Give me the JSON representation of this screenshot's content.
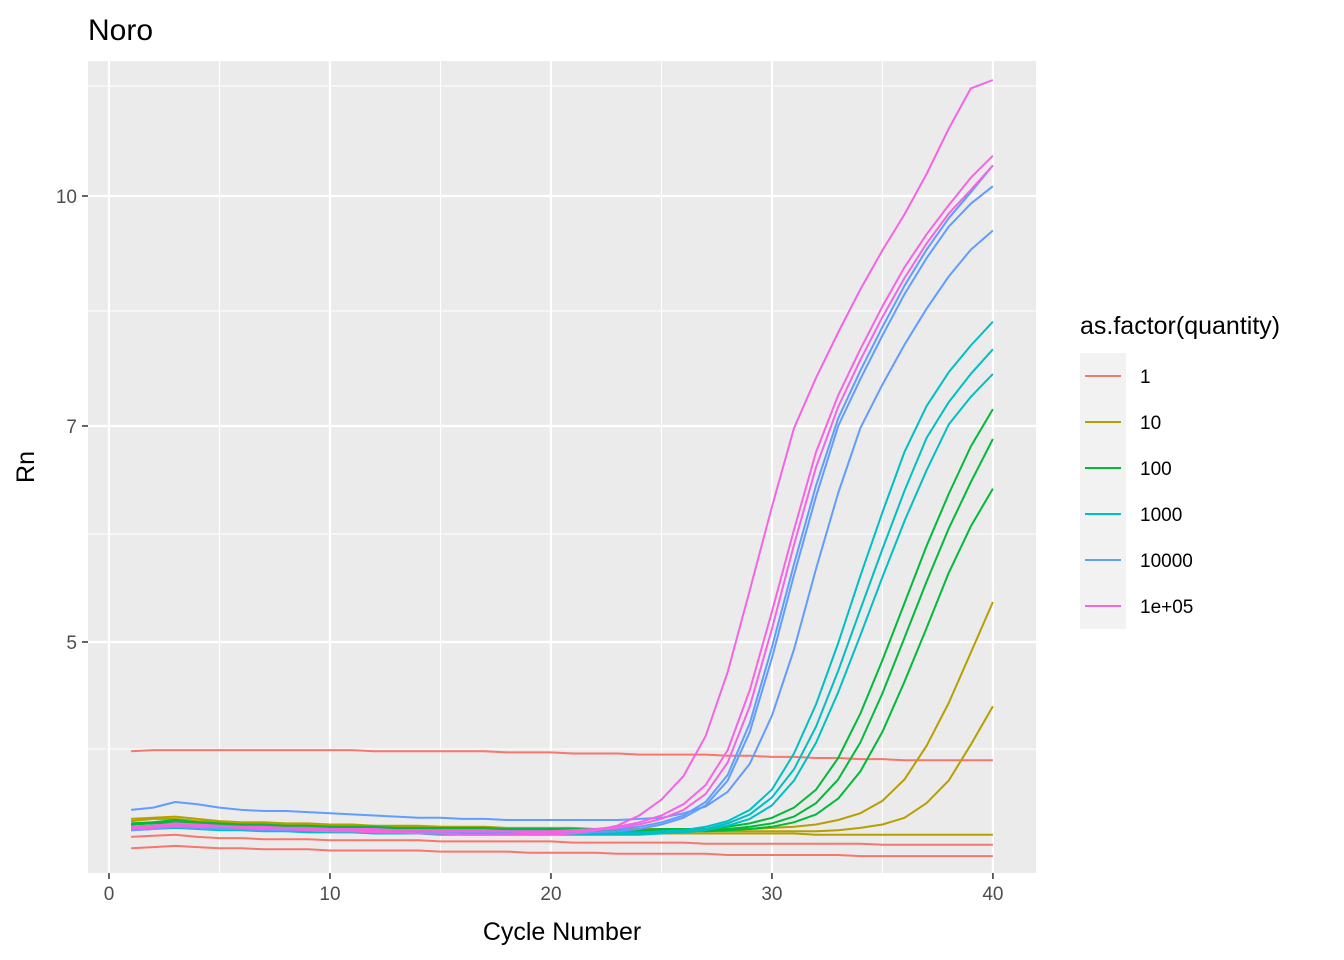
{
  "chart_data": {
    "type": "line",
    "title": "Noro",
    "xlabel": "Cycle Number",
    "ylabel": "Rn",
    "xlim": [
      -0.95,
      41.95
    ],
    "ylim": [
      2.9,
      11.4
    ],
    "x_ticks": [
      0,
      10,
      20,
      30,
      40
    ],
    "x_minor": [
      5,
      15,
      25,
      35
    ],
    "y_ticks": [
      5,
      7,
      10
    ],
    "y_tick_labels": [
      "5",
      "7",
      "10"
    ],
    "y_minor": [
      4.0,
      6.0,
      8.5,
      10.9
    ],
    "grid": true,
    "legend": {
      "title": "as.factor(quantity)",
      "position": "right",
      "entries": [
        {
          "label": "1",
          "color": "#F8766D"
        },
        {
          "label": "10",
          "color": "#B79F00"
        },
        {
          "label": "100",
          "color": "#00BA38"
        },
        {
          "label": "1000",
          "color": "#00BFC4"
        },
        {
          "label": "10000",
          "color": "#619CFF"
        },
        {
          "label": "1e+05",
          "color": "#F564E3"
        }
      ]
    },
    "x": [
      1,
      2,
      3,
      4,
      5,
      6,
      7,
      8,
      9,
      10,
      11,
      12,
      13,
      14,
      15,
      16,
      17,
      18,
      19,
      20,
      21,
      22,
      23,
      24,
      25,
      26,
      27,
      28,
      29,
      30,
      31,
      32,
      33,
      34,
      35,
      36,
      37,
      38,
      39,
      40
    ],
    "series": [
      {
        "group": "1",
        "color": "#F8766D",
        "values": [
          3.98,
          3.99,
          3.99,
          3.99,
          3.99,
          3.99,
          3.99,
          3.99,
          3.99,
          3.99,
          3.99,
          3.98,
          3.98,
          3.98,
          3.98,
          3.98,
          3.98,
          3.97,
          3.97,
          3.97,
          3.96,
          3.96,
          3.96,
          3.95,
          3.95,
          3.95,
          3.95,
          3.94,
          3.94,
          3.93,
          3.93,
          3.92,
          3.92,
          3.91,
          3.91,
          3.9,
          3.9,
          3.9,
          3.9,
          3.9
        ]
      },
      {
        "group": "1",
        "color": "#F8766D",
        "values": [
          3.22,
          3.23,
          3.24,
          3.22,
          3.21,
          3.21,
          3.2,
          3.2,
          3.2,
          3.19,
          3.19,
          3.19,
          3.19,
          3.19,
          3.18,
          3.18,
          3.18,
          3.18,
          3.18,
          3.18,
          3.17,
          3.17,
          3.17,
          3.17,
          3.17,
          3.17,
          3.16,
          3.16,
          3.16,
          3.16,
          3.16,
          3.16,
          3.16,
          3.16,
          3.15,
          3.15,
          3.15,
          3.15,
          3.15,
          3.15
        ]
      },
      {
        "group": "1",
        "color": "#F8766D",
        "values": [
          3.12,
          3.13,
          3.14,
          3.13,
          3.12,
          3.12,
          3.11,
          3.11,
          3.11,
          3.1,
          3.1,
          3.1,
          3.1,
          3.1,
          3.09,
          3.09,
          3.09,
          3.09,
          3.08,
          3.08,
          3.08,
          3.08,
          3.07,
          3.07,
          3.07,
          3.07,
          3.07,
          3.06,
          3.06,
          3.06,
          3.06,
          3.06,
          3.06,
          3.05,
          3.05,
          3.05,
          3.05,
          3.05,
          3.05,
          3.05
        ]
      },
      {
        "group": "10",
        "color": "#B79F00",
        "values": [
          3.33,
          3.35,
          3.36,
          3.34,
          3.32,
          3.31,
          3.31,
          3.3,
          3.3,
          3.29,
          3.29,
          3.28,
          3.28,
          3.28,
          3.27,
          3.27,
          3.27,
          3.27,
          3.27,
          3.26,
          3.26,
          3.26,
          3.26,
          3.26,
          3.25,
          3.25,
          3.25,
          3.25,
          3.25,
          3.25,
          3.25,
          3.24,
          3.24,
          3.24,
          3.24,
          3.24,
          3.24,
          3.24,
          3.24,
          3.24
        ]
      },
      {
        "group": "10",
        "color": "#B79F00",
        "values": [
          3.36,
          3.38,
          3.38,
          3.36,
          3.35,
          3.34,
          3.34,
          3.33,
          3.33,
          3.32,
          3.32,
          3.31,
          3.31,
          3.31,
          3.3,
          3.3,
          3.3,
          3.29,
          3.29,
          3.29,
          3.29,
          3.28,
          3.28,
          3.28,
          3.28,
          3.28,
          3.27,
          3.27,
          3.27,
          3.27,
          3.27,
          3.27,
          3.28,
          3.3,
          3.33,
          3.39,
          3.52,
          3.72,
          4.04,
          4.4
        ]
      },
      {
        "group": "10",
        "color": "#B79F00",
        "values": [
          3.38,
          3.39,
          3.4,
          3.38,
          3.36,
          3.35,
          3.35,
          3.34,
          3.34,
          3.33,
          3.33,
          3.32,
          3.32,
          3.32,
          3.31,
          3.31,
          3.31,
          3.3,
          3.3,
          3.3,
          3.3,
          3.29,
          3.29,
          3.29,
          3.29,
          3.29,
          3.28,
          3.29,
          3.29,
          3.3,
          3.31,
          3.33,
          3.37,
          3.43,
          3.54,
          3.73,
          4.03,
          4.43,
          4.9,
          5.37
        ]
      },
      {
        "group": "100",
        "color": "#00BA38",
        "values": [
          3.31,
          3.32,
          3.34,
          3.33,
          3.32,
          3.31,
          3.31,
          3.3,
          3.3,
          3.29,
          3.29,
          3.29,
          3.28,
          3.28,
          3.28,
          3.28,
          3.28,
          3.27,
          3.27,
          3.27,
          3.27,
          3.27,
          3.26,
          3.26,
          3.26,
          3.27,
          3.27,
          3.28,
          3.29,
          3.31,
          3.35,
          3.42,
          3.56,
          3.8,
          4.16,
          4.63,
          5.13,
          5.64,
          6.07,
          6.42
        ]
      },
      {
        "group": "100",
        "color": "#00BA38",
        "values": [
          3.33,
          3.34,
          3.35,
          3.34,
          3.33,
          3.32,
          3.32,
          3.31,
          3.31,
          3.3,
          3.3,
          3.3,
          3.29,
          3.29,
          3.29,
          3.29,
          3.29,
          3.28,
          3.28,
          3.28,
          3.28,
          3.28,
          3.27,
          3.27,
          3.27,
          3.27,
          3.28,
          3.29,
          3.31,
          3.34,
          3.4,
          3.52,
          3.73,
          4.06,
          4.52,
          5.04,
          5.56,
          6.05,
          6.48,
          6.88
        ]
      },
      {
        "group": "100",
        "color": "#00BA38",
        "values": [
          3.34,
          3.35,
          3.37,
          3.35,
          3.34,
          3.33,
          3.33,
          3.32,
          3.32,
          3.31,
          3.31,
          3.31,
          3.3,
          3.3,
          3.3,
          3.3,
          3.3,
          3.29,
          3.29,
          3.29,
          3.29,
          3.29,
          3.28,
          3.28,
          3.29,
          3.29,
          3.29,
          3.31,
          3.34,
          3.39,
          3.48,
          3.64,
          3.92,
          4.33,
          4.83,
          5.36,
          5.89,
          6.37,
          6.81,
          7.22
        ]
      },
      {
        "group": "1000",
        "color": "#00BFC4",
        "values": [
          3.28,
          3.29,
          3.3,
          3.29,
          3.28,
          3.28,
          3.27,
          3.27,
          3.26,
          3.26,
          3.26,
          3.25,
          3.25,
          3.25,
          3.24,
          3.24,
          3.24,
          3.24,
          3.24,
          3.24,
          3.24,
          3.24,
          3.24,
          3.24,
          3.25,
          3.26,
          3.28,
          3.32,
          3.38,
          3.5,
          3.72,
          4.06,
          4.53,
          5.06,
          5.6,
          6.12,
          6.59,
          7.02,
          7.38,
          7.68
        ]
      },
      {
        "group": "1000",
        "color": "#00BFC4",
        "values": [
          3.29,
          3.3,
          3.31,
          3.3,
          3.29,
          3.29,
          3.28,
          3.28,
          3.27,
          3.27,
          3.27,
          3.26,
          3.26,
          3.26,
          3.25,
          3.25,
          3.25,
          3.25,
          3.25,
          3.25,
          3.25,
          3.25,
          3.25,
          3.25,
          3.26,
          3.27,
          3.29,
          3.34,
          3.42,
          3.57,
          3.82,
          4.21,
          4.73,
          5.3,
          5.86,
          6.4,
          6.89,
          7.31,
          7.68,
          8.0
        ]
      },
      {
        "group": "1000",
        "color": "#00BFC4",
        "values": [
          3.31,
          3.32,
          3.33,
          3.32,
          3.31,
          3.3,
          3.3,
          3.29,
          3.29,
          3.28,
          3.28,
          3.28,
          3.27,
          3.27,
          3.27,
          3.27,
          3.27,
          3.26,
          3.26,
          3.26,
          3.26,
          3.26,
          3.26,
          3.26,
          3.27,
          3.28,
          3.31,
          3.36,
          3.46,
          3.64,
          3.96,
          4.42,
          4.99,
          5.61,
          6.2,
          6.76,
          7.26,
          7.7,
          8.05,
          8.36
        ]
      },
      {
        "group": "10000",
        "color": "#619CFF",
        "values": [
          3.46,
          3.48,
          3.53,
          3.51,
          3.48,
          3.46,
          3.45,
          3.45,
          3.44,
          3.43,
          3.42,
          3.41,
          3.4,
          3.39,
          3.39,
          3.38,
          3.38,
          3.37,
          3.37,
          3.37,
          3.37,
          3.37,
          3.37,
          3.38,
          3.39,
          3.43,
          3.49,
          3.62,
          3.87,
          4.31,
          4.93,
          5.68,
          6.38,
          6.98,
          7.54,
          8.06,
          8.53,
          8.95,
          9.3,
          9.55
        ]
      },
      {
        "group": "10000",
        "color": "#619CFF",
        "values": [
          3.28,
          3.29,
          3.31,
          3.3,
          3.29,
          3.29,
          3.28,
          3.28,
          3.28,
          3.27,
          3.27,
          3.27,
          3.26,
          3.26,
          3.26,
          3.26,
          3.26,
          3.25,
          3.25,
          3.25,
          3.25,
          3.26,
          3.27,
          3.29,
          3.33,
          3.39,
          3.5,
          3.72,
          4.16,
          4.85,
          5.62,
          6.35,
          7.0,
          7.61,
          8.18,
          8.72,
          9.19,
          9.6,
          9.9,
          10.08
        ]
      },
      {
        "group": "10000",
        "color": "#619CFF",
        "values": [
          3.31,
          3.32,
          3.33,
          3.32,
          3.31,
          3.31,
          3.3,
          3.3,
          3.3,
          3.29,
          3.29,
          3.29,
          3.28,
          3.28,
          3.28,
          3.28,
          3.28,
          3.27,
          3.27,
          3.27,
          3.27,
          3.28,
          3.29,
          3.31,
          3.35,
          3.41,
          3.53,
          3.77,
          4.24,
          4.95,
          5.72,
          6.45,
          7.1,
          7.72,
          8.29,
          8.83,
          9.3,
          9.71,
          10.03,
          10.25
        ]
      },
      {
        "group": "1e+05",
        "color": "#F564E3",
        "values": [
          3.3,
          3.31,
          3.32,
          3.31,
          3.31,
          3.3,
          3.3,
          3.29,
          3.29,
          3.29,
          3.28,
          3.28,
          3.28,
          3.28,
          3.27,
          3.27,
          3.27,
          3.27,
          3.26,
          3.26,
          3.27,
          3.28,
          3.3,
          3.33,
          3.38,
          3.46,
          3.6,
          3.88,
          4.4,
          5.12,
          5.9,
          6.62,
          7.25,
          7.86,
          8.42,
          8.93,
          9.38,
          9.77,
          10.05,
          10.25
        ]
      },
      {
        "group": "1e+05",
        "color": "#F564E3",
        "values": [
          3.29,
          3.3,
          3.33,
          3.32,
          3.31,
          3.3,
          3.29,
          3.29,
          3.28,
          3.27,
          3.27,
          3.26,
          3.26,
          3.25,
          3.25,
          3.24,
          3.24,
          3.24,
          3.24,
          3.24,
          3.25,
          3.28,
          3.32,
          3.41,
          3.55,
          3.76,
          4.12,
          4.72,
          5.48,
          6.25,
          6.98,
          7.63,
          8.22,
          8.78,
          9.29,
          9.76,
          10.18,
          10.55,
          10.88,
          11.02
        ]
      },
      {
        "group": "1e+05",
        "color": "#F564E3",
        "values": [
          3.31,
          3.32,
          3.34,
          3.33,
          3.32,
          3.31,
          3.31,
          3.3,
          3.3,
          3.29,
          3.29,
          3.29,
          3.28,
          3.28,
          3.28,
          3.28,
          3.28,
          3.27,
          3.27,
          3.27,
          3.28,
          3.29,
          3.31,
          3.35,
          3.41,
          3.51,
          3.68,
          3.99,
          4.55,
          5.28,
          6.04,
          6.76,
          7.4,
          8.0,
          8.56,
          9.07,
          9.5,
          9.88,
          10.15,
          10.33
        ]
      }
    ]
  }
}
